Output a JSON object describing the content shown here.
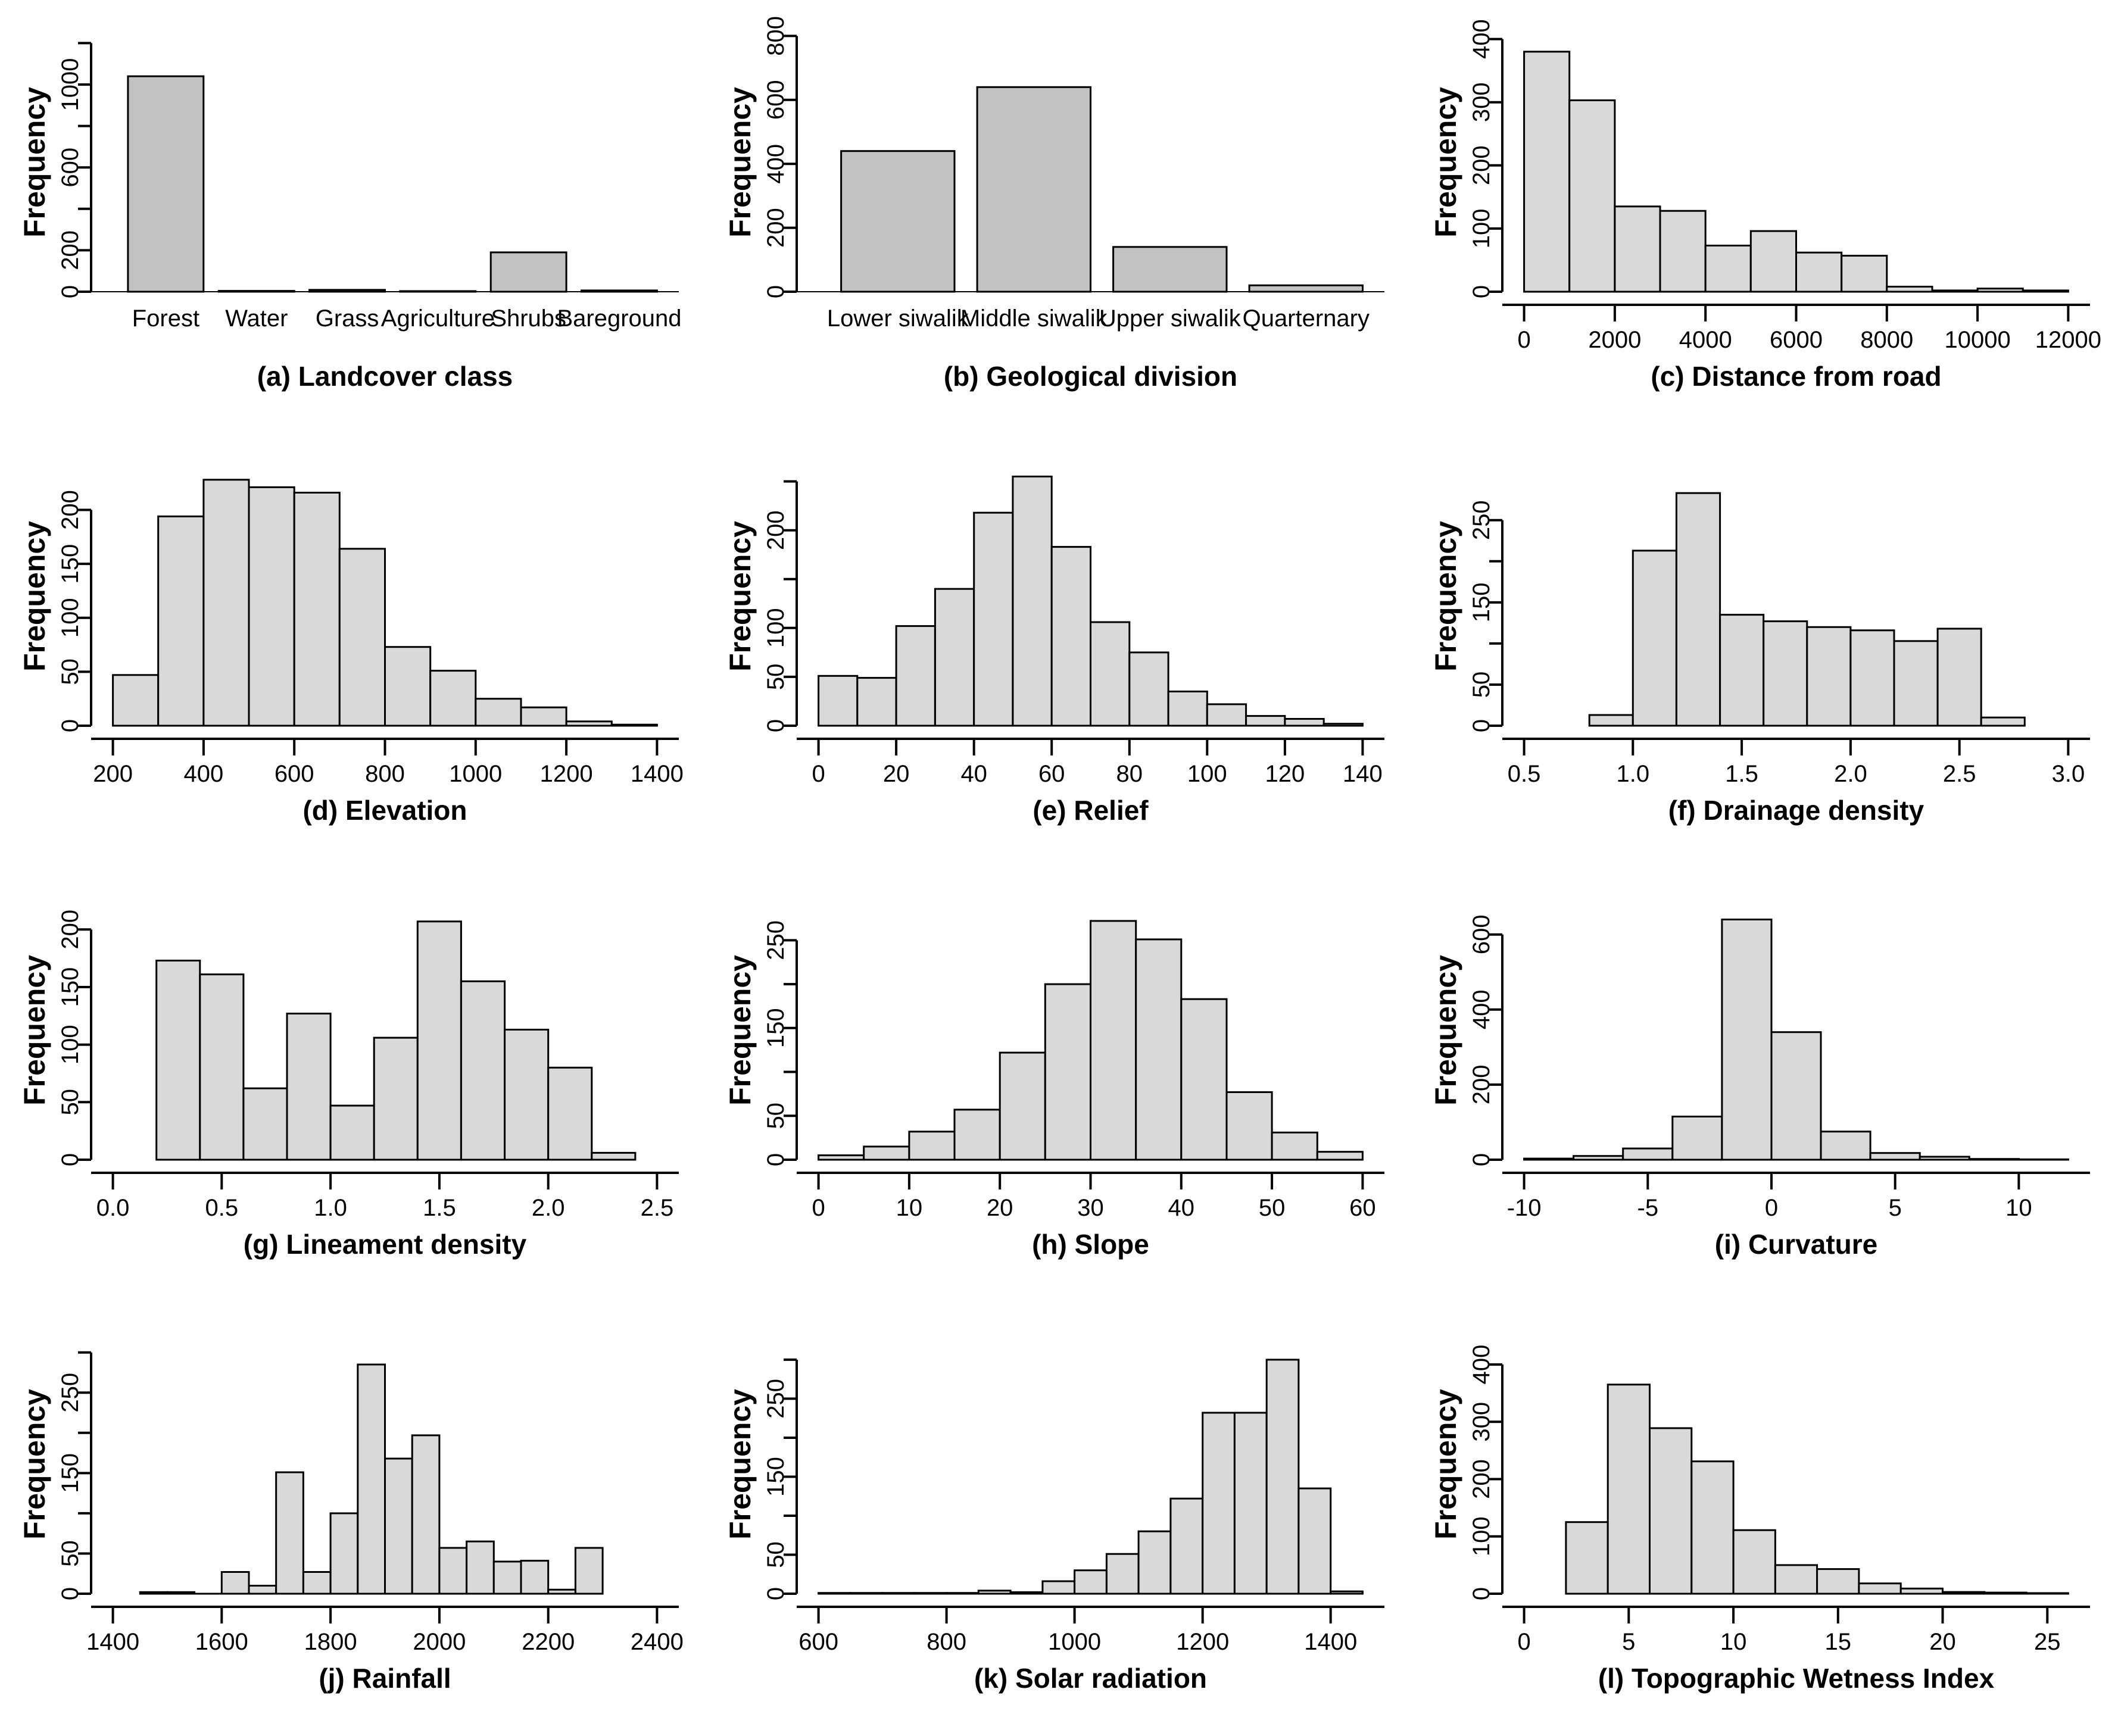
{
  "figure": {
    "ylabel": "Frequency",
    "colors": {
      "bar_fill": "#c2c2c2",
      "hist_fill": "#d9d9d9",
      "stroke": "#000000",
      "background": "#ffffff"
    }
  },
  "chart_data": [
    {
      "id": "a",
      "type": "bar",
      "caption": "(a) Landcover class",
      "ylabel": "Frequency",
      "categories": [
        "Forest",
        "Water",
        "Grass",
        "Agriculture",
        "Shrubs",
        "Bareground"
      ],
      "values": [
        1040,
        4,
        9,
        3,
        190,
        6
      ],
      "y_ticks": [
        0,
        200,
        400,
        600,
        800,
        1000,
        1200
      ],
      "y_tick_labels": [
        "0",
        "200",
        "",
        "600",
        "",
        "1000",
        ""
      ],
      "ylim": [
        0,
        1250
      ],
      "grid": false,
      "legend": false
    },
    {
      "id": "b",
      "type": "bar",
      "caption": "(b) Geological division",
      "ylabel": "Frequency",
      "categories": [
        "Lower siwalik",
        "Middle siwalik",
        "Upper siwalik",
        "Quarternary"
      ],
      "values": [
        440,
        640,
        140,
        20
      ],
      "y_ticks": [
        0,
        200,
        400,
        600,
        800
      ],
      "y_tick_labels": [
        "0",
        "200",
        "400",
        "600",
        "800"
      ],
      "ylim": [
        0,
        810
      ],
      "grid": false,
      "legend": false
    },
    {
      "id": "c",
      "type": "histogram",
      "caption": "(c) Distance from road",
      "ylabel": "Frequency",
      "bin_start": 0,
      "bin_width": 1000,
      "counts": [
        380,
        303,
        135,
        128,
        73,
        96,
        62,
        57,
        8,
        2,
        5,
        2
      ],
      "x_ticks": [
        0,
        2000,
        4000,
        6000,
        8000,
        10000,
        12000
      ],
      "x_tick_labels": [
        "0",
        "2000",
        "4000",
        "6000",
        "8000",
        "10000",
        "12000"
      ],
      "xlim": [
        0,
        12000
      ],
      "y_ticks": [
        0,
        100,
        200,
        300,
        400
      ],
      "y_tick_labels": [
        "0",
        "100",
        "200",
        "300",
        "400"
      ],
      "ylim": [
        0,
        410
      ],
      "grid": false,
      "legend": false
    },
    {
      "id": "d",
      "type": "histogram",
      "caption": "(d) Elevation",
      "ylabel": "Frequency",
      "bin_start": 200,
      "bin_width": 100,
      "counts": [
        47,
        194,
        228,
        221,
        216,
        164,
        73,
        51,
        25,
        17,
        4,
        1
      ],
      "x_ticks": [
        200,
        400,
        600,
        800,
        1000,
        1200,
        1400
      ],
      "x_tick_labels": [
        "200",
        "400",
        "600",
        "800",
        "1000",
        "1200",
        "1400"
      ],
      "xlim": [
        200,
        1400
      ],
      "y_ticks": [
        0,
        50,
        100,
        150,
        200
      ],
      "y_tick_labels": [
        "0",
        "50",
        "100",
        "150",
        "200"
      ],
      "ylim": [
        0,
        240
      ],
      "grid": false,
      "legend": false
    },
    {
      "id": "e",
      "type": "histogram",
      "caption": "(e) Relief",
      "ylabel": "Frequency",
      "bin_start": 0,
      "bin_width": 10,
      "counts": [
        51,
        49,
        102,
        140,
        218,
        255,
        183,
        106,
        75,
        35,
        22,
        10,
        7,
        2
      ],
      "x_ticks": [
        0,
        20,
        40,
        60,
        80,
        100,
        120,
        140
      ],
      "x_tick_labels": [
        "0",
        "20",
        "40",
        "60",
        "80",
        "100",
        "120",
        "140"
      ],
      "xlim": [
        0,
        140
      ],
      "y_ticks": [
        0,
        50,
        100,
        150,
        200,
        250
      ],
      "y_tick_labels": [
        "0",
        "50",
        "100",
        "",
        "200",
        ""
      ],
      "ylim": [
        0,
        265
      ],
      "grid": false,
      "legend": false
    },
    {
      "id": "f",
      "type": "histogram",
      "caption": "(f) Drainage density",
      "ylabel": "Frequency",
      "bin_start": 0.8,
      "bin_width": 0.2,
      "counts": [
        13,
        213,
        283,
        135,
        127,
        120,
        116,
        103,
        118,
        10
      ],
      "x_ticks": [
        0.5,
        1.0,
        1.5,
        2.0,
        2.5,
        3.0
      ],
      "x_tick_labels": [
        "0.5",
        "1.0",
        "1.5",
        "2.0",
        "2.5",
        "3.0"
      ],
      "xlim": [
        0.5,
        3.0
      ],
      "y_ticks": [
        0,
        50,
        100,
        150,
        200,
        250
      ],
      "y_tick_labels": [
        "0",
        "50",
        "",
        "150",
        "",
        "250"
      ],
      "ylim": [
        0,
        315
      ],
      "grid": false,
      "legend": false
    },
    {
      "id": "g",
      "type": "histogram",
      "caption": "(g) Lineament density",
      "ylabel": "Frequency",
      "bin_start": 0.2,
      "bin_width": 0.2,
      "counts": [
        173,
        161,
        62,
        127,
        47,
        106,
        207,
        155,
        113,
        80,
        6
      ],
      "x_ticks": [
        0.0,
        0.5,
        1.0,
        1.5,
        2.0,
        2.5
      ],
      "x_tick_labels": [
        "0.0",
        "0.5",
        "1.0",
        "1.5",
        "2.0",
        "2.5"
      ],
      "xlim": [
        0,
        2.5
      ],
      "y_ticks": [
        0,
        50,
        100,
        150,
        200
      ],
      "y_tick_labels": [
        "0",
        "50",
        "100",
        "150",
        "200"
      ],
      "ylim": [
        0,
        225
      ],
      "grid": false,
      "legend": false
    },
    {
      "id": "h",
      "type": "histogram",
      "caption": "(h) Slope",
      "ylabel": "Frequency",
      "bin_start": 0,
      "bin_width": 5,
      "counts": [
        5,
        15,
        32,
        57,
        122,
        200,
        272,
        251,
        183,
        77,
        31,
        9
      ],
      "x_ticks": [
        0,
        10,
        20,
        30,
        40,
        50,
        60
      ],
      "x_tick_labels": [
        "0",
        "10",
        "20",
        "30",
        "40",
        "50",
        "60"
      ],
      "xlim": [
        0,
        60
      ],
      "y_ticks": [
        0,
        50,
        100,
        150,
        200,
        250
      ],
      "y_tick_labels": [
        "0",
        "50",
        "",
        "150",
        "",
        "250"
      ],
      "ylim": [
        0,
        295
      ],
      "grid": false,
      "legend": false
    },
    {
      "id": "i",
      "type": "histogram",
      "caption": "(i) Curvature",
      "ylabel": "Frequency",
      "bin_start": -10,
      "bin_width": 2,
      "counts": [
        3,
        10,
        30,
        115,
        640,
        340,
        75,
        18,
        8,
        2,
        1
      ],
      "x_ticks": [
        -10,
        -5,
        0,
        5,
        10
      ],
      "x_tick_labels": [
        "-10",
        "-5",
        "0",
        "5",
        "10"
      ],
      "xlim": [
        -10,
        12
      ],
      "y_ticks": [
        0,
        200,
        400,
        600
      ],
      "y_tick_labels": [
        "0",
        "200",
        "400",
        "600"
      ],
      "ylim": [
        0,
        690
      ],
      "grid": false,
      "legend": false
    },
    {
      "id": "j",
      "type": "histogram",
      "caption": "(j) Rainfall",
      "ylabel": "Frequency",
      "bin_start": 1450,
      "bin_width": 50,
      "counts": [
        2,
        2,
        0,
        27,
        10,
        151,
        27,
        100,
        285,
        168,
        197,
        57,
        65,
        40,
        41,
        5,
        57
      ],
      "x_ticks": [
        1400,
        1600,
        1800,
        2000,
        2200,
        2400
      ],
      "x_tick_labels": [
        "1400",
        "1600",
        "1800",
        "2000",
        "2200",
        "2400"
      ],
      "xlim": [
        1400,
        2400
      ],
      "y_ticks": [
        0,
        50,
        100,
        150,
        200,
        250,
        300
      ],
      "y_tick_labels": [
        "0",
        "50",
        "",
        "150",
        "",
        "250",
        ""
      ],
      "ylim": [
        0,
        322
      ],
      "grid": false,
      "legend": false
    },
    {
      "id": "k",
      "type": "histogram",
      "caption": "(k) Solar radiation",
      "ylabel": "Frequency",
      "bin_start": 600,
      "bin_width": 50,
      "counts": [
        1,
        1,
        1,
        1,
        1,
        4,
        2,
        16,
        30,
        51,
        80,
        122,
        232,
        232,
        300,
        135,
        3
      ],
      "x_ticks": [
        600,
        800,
        1000,
        1200,
        1400
      ],
      "x_tick_labels": [
        "600",
        "800",
        "1000",
        "1200",
        "1400"
      ],
      "xlim": [
        600,
        1450
      ],
      "y_ticks": [
        0,
        50,
        100,
        150,
        200,
        250,
        300
      ],
      "y_tick_labels": [
        "0",
        "50",
        "",
        "150",
        "",
        "250",
        ""
      ],
      "ylim": [
        0,
        332
      ],
      "grid": false,
      "legend": false
    },
    {
      "id": "l",
      "type": "histogram",
      "caption": "(l) Topographic Wetness Index",
      "ylabel": "Frequency",
      "bin_start": 2,
      "bin_width": 2,
      "counts": [
        125,
        365,
        289,
        231,
        111,
        50,
        43,
        18,
        9,
        3,
        2,
        1
      ],
      "x_ticks": [
        0,
        5,
        10,
        15,
        20,
        25
      ],
      "x_tick_labels": [
        "0",
        "5",
        "10",
        "15",
        "20",
        "25"
      ],
      "xlim": [
        0,
        26
      ],
      "y_ticks": [
        0,
        100,
        200,
        300,
        400
      ],
      "y_tick_labels": [
        "0",
        "100",
        "200",
        "300",
        "400"
      ],
      "ylim": [
        0,
        452
      ],
      "grid": false,
      "legend": false
    }
  ]
}
